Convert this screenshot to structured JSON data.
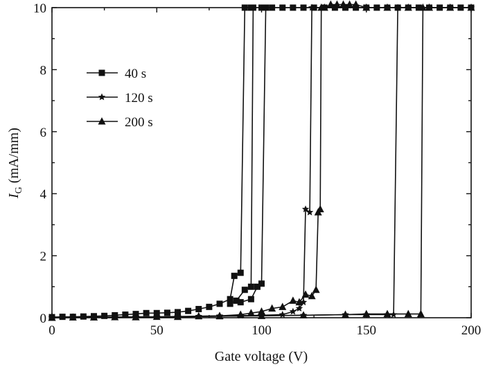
{
  "chart_data": {
    "type": "line",
    "title": "",
    "xlabel": "Gate voltage (V)",
    "ylabel_main": "I",
    "ylabel_sub": "G",
    "ylabel_unit": " (mA/mm)",
    "xlim": [
      0,
      200
    ],
    "ylim": [
      0,
      10
    ],
    "xticks": [
      "0",
      "50",
      "100",
      "150",
      "200"
    ],
    "yticks": [
      "0",
      "2",
      "4",
      "6",
      "8",
      "10"
    ],
    "legend_position": "upper-left",
    "grid": false,
    "series": [
      {
        "name": "40 s",
        "marker": "square",
        "curves": [
          [
            [
              0,
              0.02
            ],
            [
              5,
              0.03
            ],
            [
              10,
              0.03
            ],
            [
              15,
              0.04
            ],
            [
              20,
              0.05
            ],
            [
              25,
              0.06
            ],
            [
              30,
              0.08
            ],
            [
              35,
              0.1
            ],
            [
              40,
              0.12
            ],
            [
              45,
              0.15
            ],
            [
              50,
              0.15
            ],
            [
              55,
              0.16
            ],
            [
              60,
              0.18
            ],
            [
              65,
              0.22
            ],
            [
              70,
              0.28
            ],
            [
              75,
              0.35
            ],
            [
              80,
              0.45
            ],
            [
              85,
              0.6
            ],
            [
              87,
              1.35
            ],
            [
              90,
              1.45
            ],
            [
              92,
              10
            ],
            [
              95,
              10
            ],
            [
              100,
              10
            ],
            [
              105,
              10
            ],
            [
              110,
              10
            ],
            [
              115,
              10
            ],
            [
              120,
              10
            ],
            [
              125,
              10
            ],
            [
              130,
              10
            ],
            [
              135,
              10
            ],
            [
              140,
              10
            ],
            [
              145,
              10
            ],
            [
              150,
              10
            ],
            [
              155,
              10
            ],
            [
              160,
              10
            ],
            [
              165,
              10
            ],
            [
              170,
              10
            ],
            [
              175,
              10
            ],
            [
              180,
              10
            ],
            [
              185,
              10
            ],
            [
              190,
              10
            ],
            [
              195,
              10
            ],
            [
              200,
              10
            ]
          ],
          [
            [
              85,
              0.45
            ],
            [
              88,
              0.55
            ],
            [
              92,
              0.9
            ],
            [
              95,
              1.0
            ],
            [
              96,
              10
            ]
          ],
          [
            [
              90,
              0.5
            ],
            [
              95,
              0.6
            ],
            [
              98,
              1.0
            ],
            [
              100,
              1.1
            ],
            [
              102,
              10
            ]
          ]
        ]
      },
      {
        "name": "120 s",
        "marker": "star",
        "curves": [
          [
            [
              0,
              0.01
            ],
            [
              10,
              0.01
            ],
            [
              20,
              0.02
            ],
            [
              30,
              0.02
            ],
            [
              40,
              0.03
            ],
            [
              50,
              0.03
            ],
            [
              60,
              0.04
            ],
            [
              70,
              0.05
            ],
            [
              80,
              0.06
            ],
            [
              90,
              0.07
            ],
            [
              100,
              0.08
            ],
            [
              110,
              0.1
            ],
            [
              115,
              0.2
            ],
            [
              118,
              0.3
            ],
            [
              120,
              0.5
            ],
            [
              121,
              3.5
            ],
            [
              123,
              3.4
            ],
            [
              124,
              10
            ],
            [
              130,
              10
            ],
            [
              140,
              10
            ],
            [
              150,
              10
            ],
            [
              160,
              10
            ],
            [
              170,
              10
            ],
            [
              180,
              10
            ],
            [
              190,
              10
            ],
            [
              200,
              10
            ]
          ],
          [
            [
              0,
              0.0
            ],
            [
              20,
              0.01
            ],
            [
              40,
              0.02
            ],
            [
              60,
              0.03
            ],
            [
              80,
              0.05
            ],
            [
              100,
              0.07
            ],
            [
              120,
              0.08
            ],
            [
              140,
              0.1
            ],
            [
              150,
              0.1
            ],
            [
              160,
              0.1
            ],
            [
              163,
              0.1
            ],
            [
              165,
              10
            ]
          ]
        ]
      },
      {
        "name": "200 s",
        "marker": "triangle",
        "curves": [
          [
            [
              0,
              0.0
            ],
            [
              10,
              0.01
            ],
            [
              20,
              0.01
            ],
            [
              30,
              0.02
            ],
            [
              40,
              0.02
            ],
            [
              50,
              0.03
            ],
            [
              60,
              0.03
            ],
            [
              70,
              0.05
            ],
            [
              80,
              0.06
            ],
            [
              90,
              0.1
            ],
            [
              95,
              0.15
            ],
            [
              100,
              0.2
            ],
            [
              105,
              0.3
            ],
            [
              110,
              0.35
            ],
            [
              115,
              0.55
            ],
            [
              118,
              0.5
            ],
            [
              121,
              0.75
            ],
            [
              124,
              0.7
            ],
            [
              126,
              0.9
            ],
            [
              127,
              3.4
            ],
            [
              128,
              3.5
            ],
            [
              128.5,
              10
            ],
            [
              130,
              10
            ],
            [
              133,
              10.1
            ],
            [
              136,
              10.1
            ],
            [
              139,
              10.1
            ],
            [
              142,
              10.1
            ],
            [
              145,
              10.1
            ],
            [
              150,
              10
            ],
            [
              160,
              10
            ],
            [
              170,
              10
            ],
            [
              180,
              10
            ],
            [
              190,
              10
            ],
            [
              200,
              10
            ]
          ],
          [
            [
              0,
              0.0
            ],
            [
              20,
              0.01
            ],
            [
              40,
              0.02
            ],
            [
              60,
              0.03
            ],
            [
              80,
              0.05
            ],
            [
              100,
              0.06
            ],
            [
              120,
              0.08
            ],
            [
              140,
              0.1
            ],
            [
              150,
              0.12
            ],
            [
              160,
              0.12
            ],
            [
              170,
              0.12
            ],
            [
              176,
              0.12
            ],
            [
              177,
              10
            ]
          ]
        ]
      }
    ]
  }
}
